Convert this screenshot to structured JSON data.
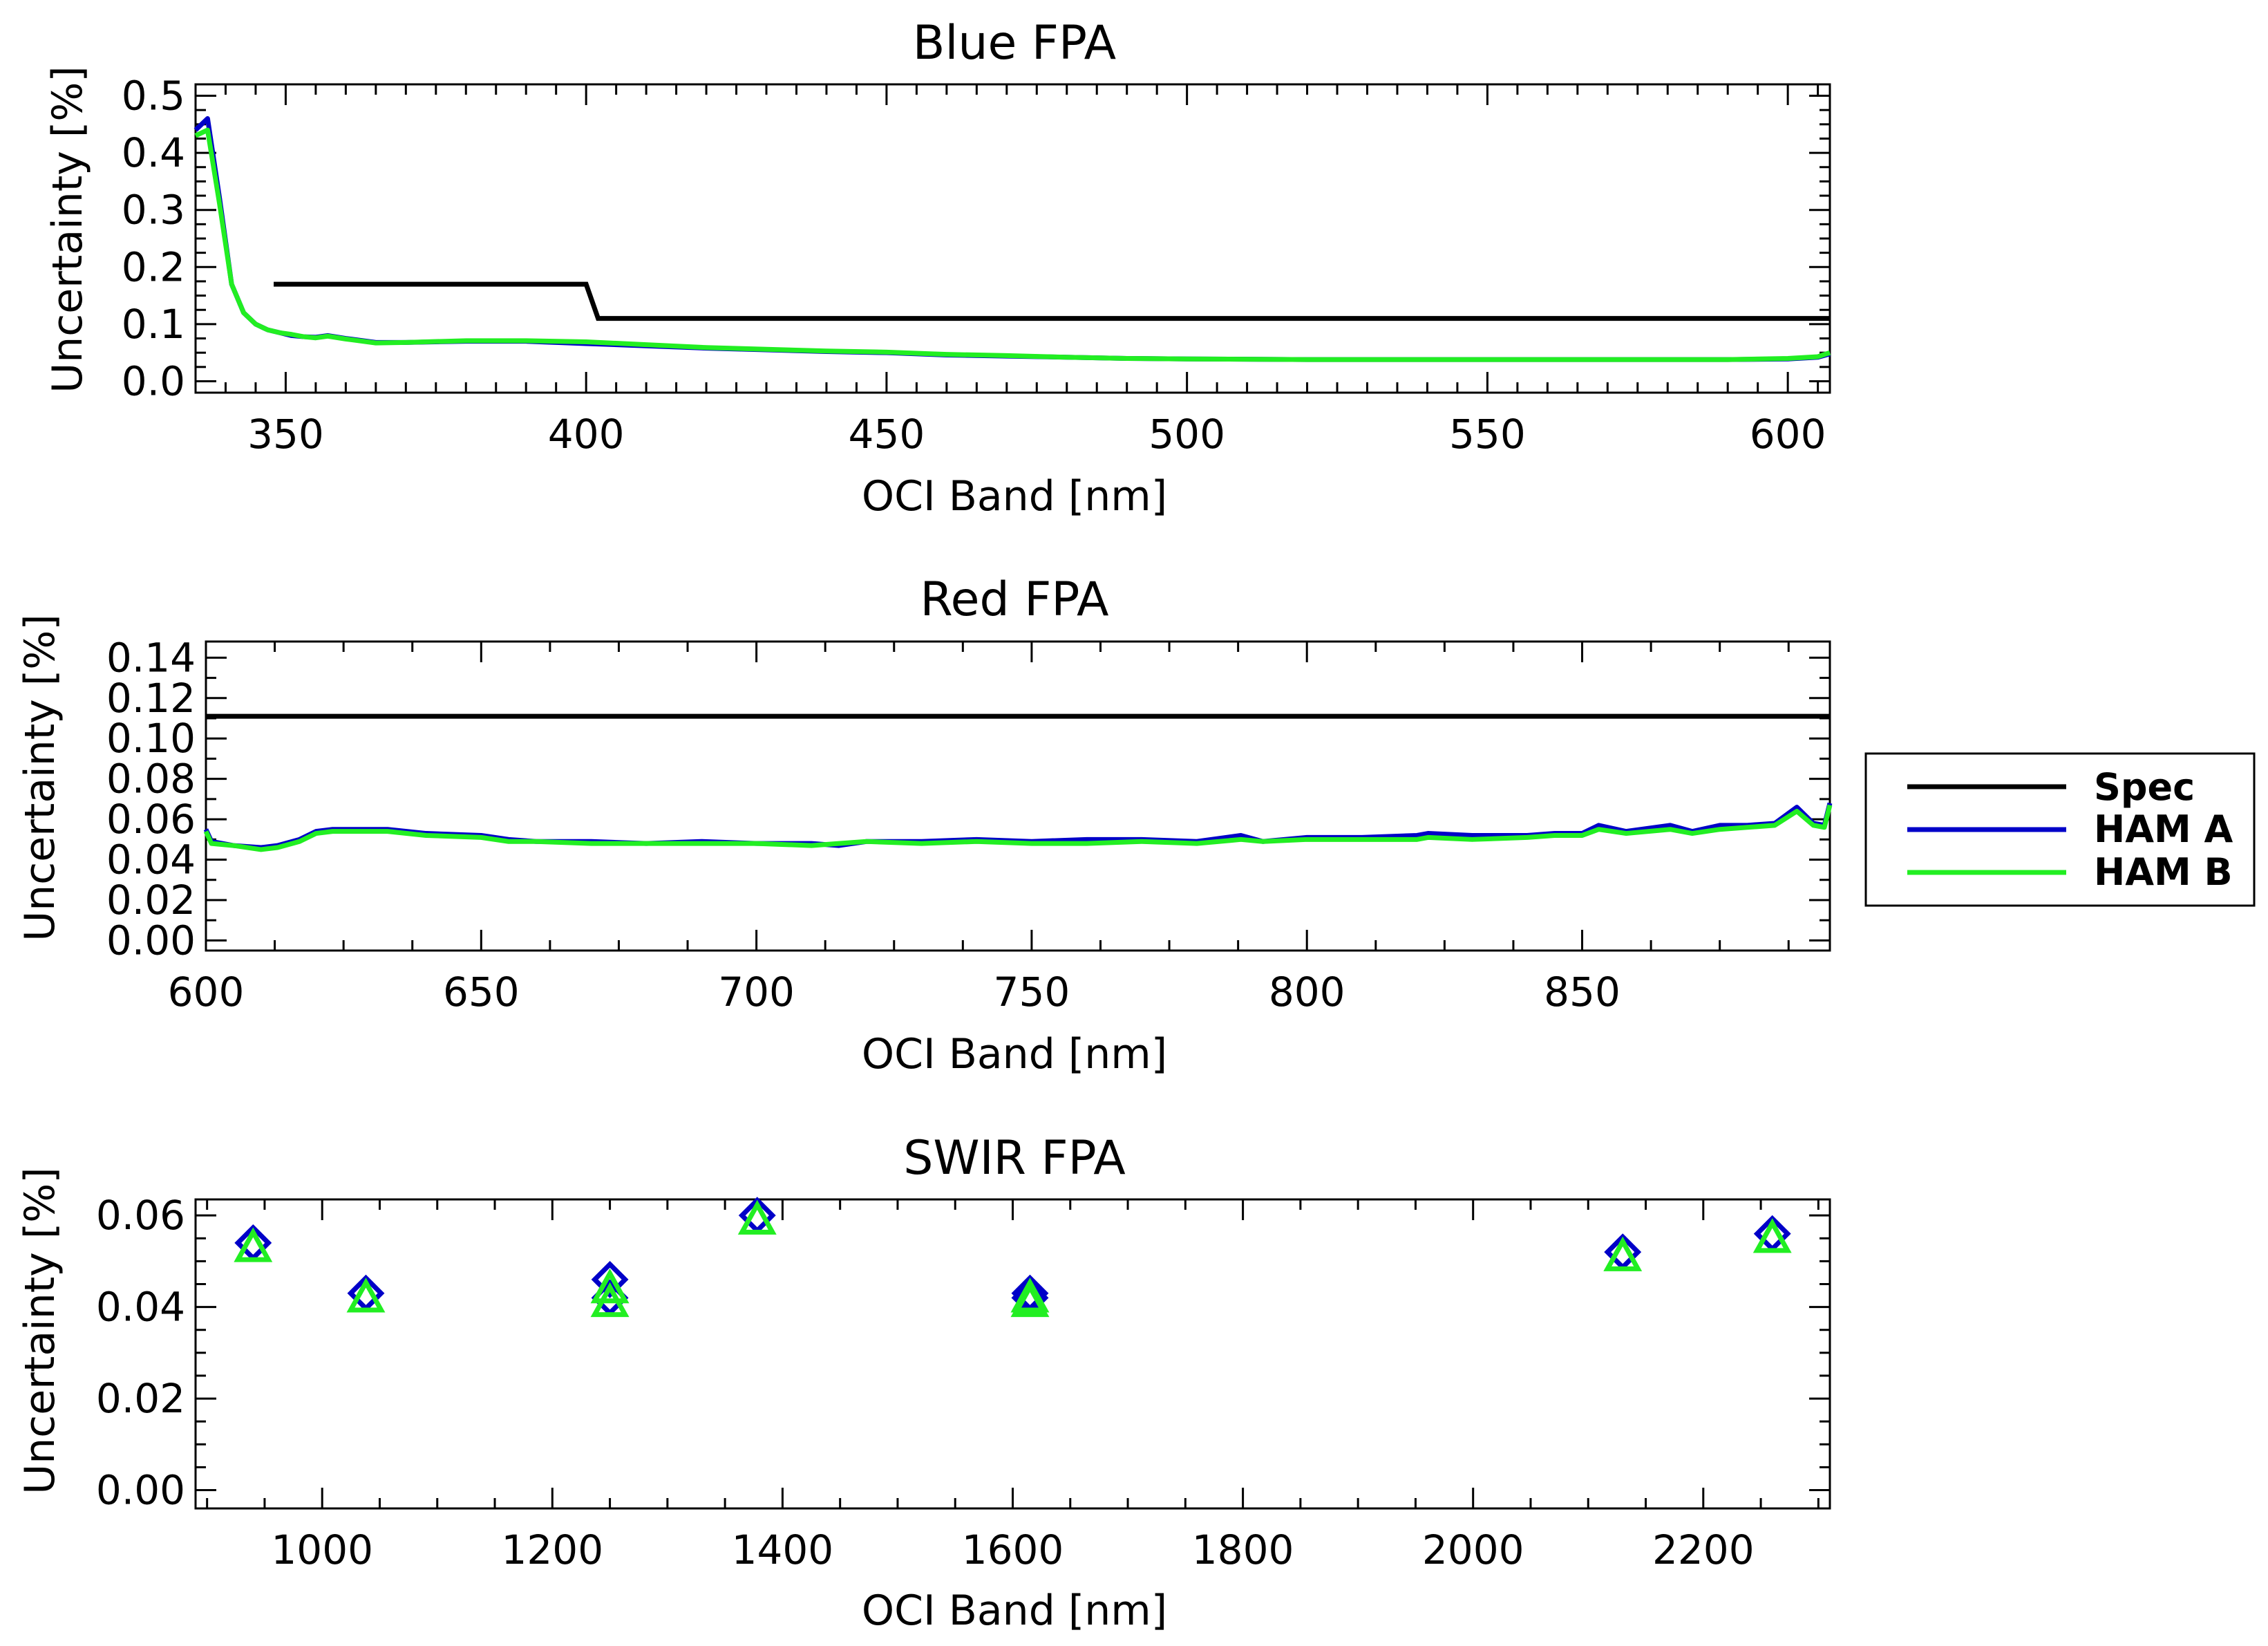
{
  "legend": {
    "entries": [
      {
        "label": "Spec",
        "color": "#000000"
      },
      {
        "label": "HAM A",
        "color": "#0000c8"
      },
      {
        "label": "HAM B",
        "color": "#22ee22"
      }
    ]
  },
  "chart_data": [
    {
      "type": "line",
      "title": "Blue FPA",
      "xlabel": "OCI Band [nm]",
      "ylabel": "Uncertainty [%]",
      "xlim": [
        335,
        607
      ],
      "ylim": [
        -0.02,
        0.52
      ],
      "xticks": [
        350,
        400,
        450,
        500,
        550,
        600
      ],
      "yticks": [
        0.0,
        0.1,
        0.2,
        0.3,
        0.4,
        0.5
      ],
      "ytick_labels": [
        "0.0",
        "0.1",
        "0.2",
        "0.3",
        "0.4",
        "0.5"
      ],
      "spec": {
        "x": [
          348,
          400,
          402,
          607
        ],
        "y": [
          0.17,
          0.17,
          0.11,
          0.11
        ]
      },
      "series": [
        {
          "name": "HAM A",
          "x": [
            335,
            337,
            339,
            341,
            343,
            345,
            347,
            349,
            351,
            353,
            355,
            357,
            360,
            365,
            370,
            380,
            390,
            400,
            410,
            420,
            430,
            440,
            450,
            460,
            470,
            480,
            490,
            500,
            520,
            540,
            560,
            580,
            590,
            600,
            605,
            607
          ],
          "y": [
            0.44,
            0.46,
            0.32,
            0.17,
            0.12,
            0.1,
            0.09,
            0.085,
            0.08,
            0.078,
            0.077,
            0.08,
            0.075,
            0.068,
            0.068,
            0.07,
            0.07,
            0.066,
            0.062,
            0.058,
            0.055,
            0.052,
            0.05,
            0.046,
            0.044,
            0.042,
            0.04,
            0.039,
            0.038,
            0.038,
            0.038,
            0.038,
            0.038,
            0.039,
            0.042,
            0.048
          ]
        },
        {
          "name": "HAM B",
          "x": [
            335,
            337,
            339,
            341,
            343,
            345,
            347,
            349,
            351,
            353,
            355,
            357,
            360,
            365,
            370,
            380,
            390,
            400,
            410,
            420,
            430,
            440,
            450,
            460,
            470,
            480,
            490,
            500,
            520,
            540,
            560,
            580,
            590,
            600,
            605,
            607
          ],
          "y": [
            0.43,
            0.44,
            0.31,
            0.17,
            0.12,
            0.1,
            0.09,
            0.085,
            0.082,
            0.078,
            0.076,
            0.079,
            0.074,
            0.067,
            0.068,
            0.071,
            0.071,
            0.069,
            0.064,
            0.059,
            0.056,
            0.053,
            0.051,
            0.047,
            0.045,
            0.042,
            0.04,
            0.039,
            0.038,
            0.038,
            0.038,
            0.038,
            0.038,
            0.04,
            0.043,
            0.05
          ]
        }
      ]
    },
    {
      "type": "line",
      "title": "Red FPA",
      "xlabel": "OCI Band [nm]",
      "ylabel": "Uncertainty [%]",
      "xlim": [
        600,
        895
      ],
      "ylim": [
        -0.005,
        0.148
      ],
      "xticks": [
        600,
        650,
        700,
        750,
        800,
        850
      ],
      "yticks": [
        0.0,
        0.02,
        0.04,
        0.06,
        0.08,
        0.1,
        0.12,
        0.14
      ],
      "ytick_labels": [
        "0.00",
        "0.02",
        "0.04",
        "0.06",
        "0.08",
        "0.10",
        "0.12",
        "0.14"
      ],
      "spec": {
        "x": [
          600,
          895
        ],
        "y": [
          0.111,
          0.111
        ]
      },
      "series": [
        {
          "name": "HAM A",
          "x": [
            600,
            601,
            605,
            610,
            613,
            617,
            620,
            623,
            627,
            633,
            640,
            650,
            655,
            660,
            670,
            680,
            690,
            700,
            710,
            715,
            720,
            730,
            740,
            750,
            760,
            770,
            780,
            788,
            792,
            800,
            810,
            820,
            822,
            830,
            840,
            845,
            850,
            853,
            858,
            866,
            870,
            875,
            880,
            885,
            889,
            892,
            894,
            895
          ],
          "y": [
            0.055,
            0.049,
            0.047,
            0.046,
            0.047,
            0.05,
            0.054,
            0.055,
            0.055,
            0.055,
            0.053,
            0.052,
            0.05,
            0.049,
            0.049,
            0.048,
            0.049,
            0.048,
            0.048,
            0.047,
            0.049,
            0.049,
            0.05,
            0.049,
            0.05,
            0.05,
            0.049,
            0.052,
            0.049,
            0.051,
            0.051,
            0.052,
            0.053,
            0.052,
            0.052,
            0.053,
            0.053,
            0.057,
            0.054,
            0.057,
            0.054,
            0.057,
            0.057,
            0.058,
            0.066,
            0.058,
            0.057,
            0.068
          ]
        },
        {
          "name": "HAM B",
          "x": [
            600,
            601,
            605,
            610,
            613,
            617,
            620,
            623,
            627,
            633,
            640,
            650,
            655,
            660,
            670,
            680,
            690,
            700,
            710,
            715,
            720,
            730,
            740,
            750,
            760,
            770,
            780,
            788,
            792,
            800,
            810,
            820,
            822,
            830,
            840,
            845,
            850,
            853,
            858,
            866,
            870,
            875,
            880,
            885,
            889,
            892,
            894,
            895
          ],
          "y": [
            0.054,
            0.048,
            0.047,
            0.045,
            0.046,
            0.049,
            0.053,
            0.054,
            0.054,
            0.054,
            0.052,
            0.051,
            0.049,
            0.049,
            0.048,
            0.048,
            0.048,
            0.048,
            0.047,
            0.048,
            0.049,
            0.048,
            0.049,
            0.048,
            0.048,
            0.049,
            0.048,
            0.05,
            0.049,
            0.05,
            0.05,
            0.05,
            0.051,
            0.05,
            0.051,
            0.052,
            0.052,
            0.055,
            0.053,
            0.055,
            0.053,
            0.055,
            0.056,
            0.057,
            0.064,
            0.057,
            0.056,
            0.067
          ]
        }
      ]
    },
    {
      "type": "scatter",
      "title": "SWIR FPA",
      "xlabel": "OCI Band [nm]",
      "ylabel": "Uncertainty [%]",
      "xlim": [
        890,
        2310
      ],
      "ylim": [
        -0.004,
        0.0635
      ],
      "xticks": [
        1000,
        1200,
        1400,
        1600,
        1800,
        2000,
        2200
      ],
      "yticks": [
        0.0,
        0.02,
        0.04,
        0.06
      ],
      "ytick_labels": [
        "0.00",
        "0.02",
        "0.04",
        "0.06"
      ],
      "series": [
        {
          "name": "HAM A",
          "marker": "diamond",
          "x": [
            940,
            1038,
            1250,
            1250,
            1378,
            1615,
            1615,
            2130,
            2260
          ],
          "y": [
            0.054,
            0.043,
            0.046,
            0.042,
            0.06,
            0.043,
            0.042,
            0.052,
            0.056
          ]
        },
        {
          "name": "HAM B",
          "marker": "triangle",
          "x": [
            940,
            1038,
            1250,
            1250,
            1378,
            1615,
            1615,
            2130,
            2260
          ],
          "y": [
            0.053,
            0.042,
            0.044,
            0.041,
            0.059,
            0.042,
            0.041,
            0.051,
            0.055
          ]
        }
      ]
    }
  ]
}
